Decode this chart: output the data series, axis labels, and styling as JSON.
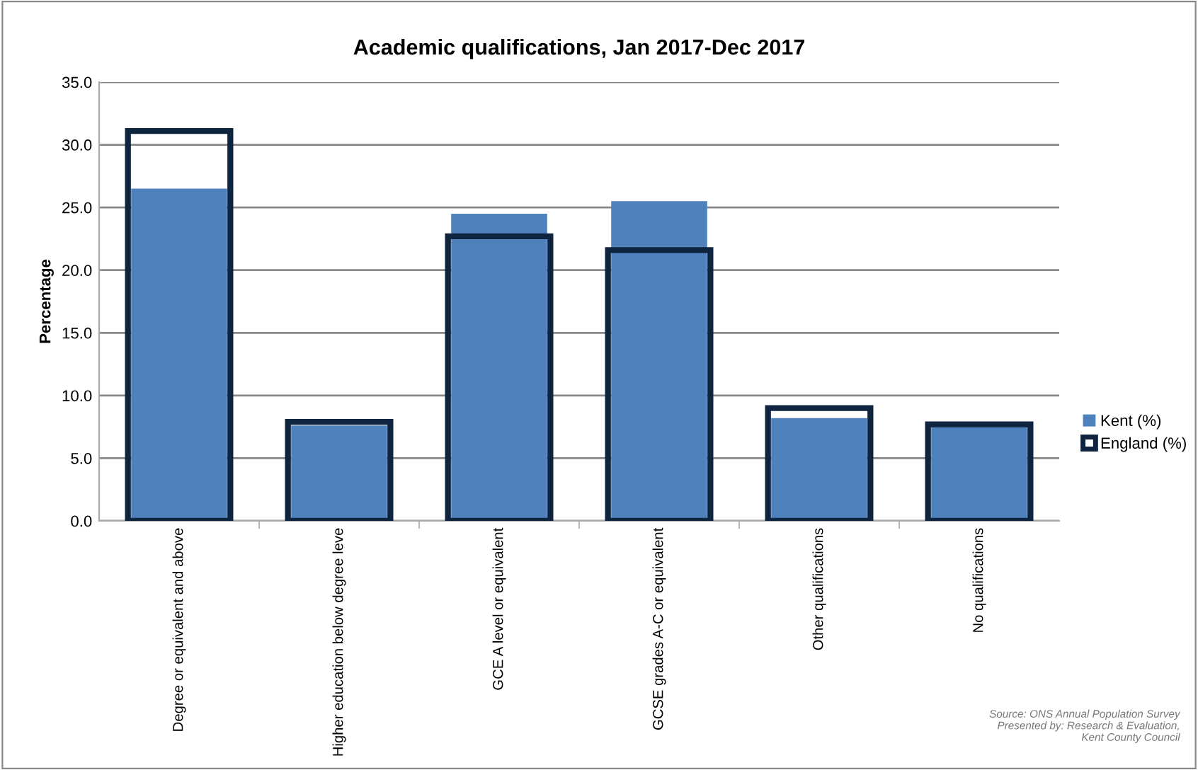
{
  "chart_data": {
    "type": "bar",
    "title": "Academic qualifications, Jan 2017-Dec 2017",
    "ylabel": "Percentage",
    "categories": [
      "Degree or equivalent and above",
      "Higher education below degree leve",
      "GCE A level or equivalent",
      "GCSE grades A-C or equivalent",
      "Other qualifications",
      "No qualifications"
    ],
    "series": [
      {
        "name": "Kent (%)",
        "color": "#4f81bd",
        "values": [
          26.5,
          7.6,
          24.5,
          25.5,
          8.2,
          7.6
        ]
      },
      {
        "name": "England (%)",
        "color": "#0f243e",
        "values": [
          31.1,
          7.9,
          22.7,
          21.6,
          9.0,
          7.7
        ]
      }
    ],
    "ylim": [
      0,
      35
    ],
    "yticks": [
      {
        "value": 0,
        "label": "0.0"
      },
      {
        "value": 5,
        "label": "5.0"
      },
      {
        "value": 10,
        "label": "10.0"
      },
      {
        "value": 15,
        "label": "15.0"
      },
      {
        "value": 20,
        "label": "20.0"
      },
      {
        "value": 25,
        "label": "25.0"
      },
      {
        "value": 30,
        "label": "30.0"
      },
      {
        "value": 35,
        "label": "35.0"
      }
    ],
    "grid": "y",
    "legend": "right",
    "annotations": [
      "Source: ONS Annual Population Survey\nPresented by: Research & Evaluation,\nKent County Council"
    ]
  }
}
